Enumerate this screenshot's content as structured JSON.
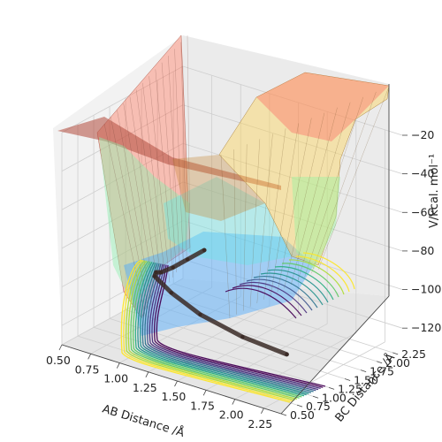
{
  "chart_data": {
    "type": "surface",
    "title": "",
    "xlabel": "AB Distance /Å",
    "ylabel": "BC Distance /Å",
    "zlabel": "V/kcal. mol⁻¹",
    "x_ticks": [
      "0.50",
      "0.75",
      "1.00",
      "1.25",
      "1.50",
      "1.75",
      "2.00",
      "2.25"
    ],
    "y_ticks": [
      "0.50",
      "0.75",
      "1.00",
      "1.25",
      "1.50",
      "1.75",
      "2.00",
      "2.25"
    ],
    "z_ticks": [
      "−120",
      "−100",
      "−80",
      "−60",
      "−40",
      "−20"
    ],
    "xlim": [
      0.5,
      2.4
    ],
    "ylim": [
      0.5,
      2.4
    ],
    "zlim": [
      -130,
      -20
    ],
    "grid": true,
    "surface_colormap": "jet (transparent)",
    "contour_colormap": "viridis",
    "trajectory_color": "#3a2a26",
    "series": [
      {
        "values": [
          {
            "x": 0.74,
            "y": 2.3,
            "z": -109
          },
          {
            "x": 0.76,
            "y": 2.0,
            "z": -108
          },
          {
            "x": 0.8,
            "y": 1.7,
            "z": -106
          },
          {
            "x": 0.86,
            "y": 1.4,
            "z": -102
          },
          {
            "x": 0.93,
            "y": 1.2,
            "z": -97
          },
          {
            "x": 1.0,
            "y": 1.05,
            "z": -95
          },
          {
            "x": 1.2,
            "y": 0.95,
            "z": -98
          },
          {
            "x": 1.5,
            "y": 0.86,
            "z": -102
          },
          {
            "x": 1.9,
            "y": 0.8,
            "z": -105
          },
          {
            "x": 2.3,
            "y": 0.77,
            "z": -106
          }
        ]
      }
    ]
  }
}
